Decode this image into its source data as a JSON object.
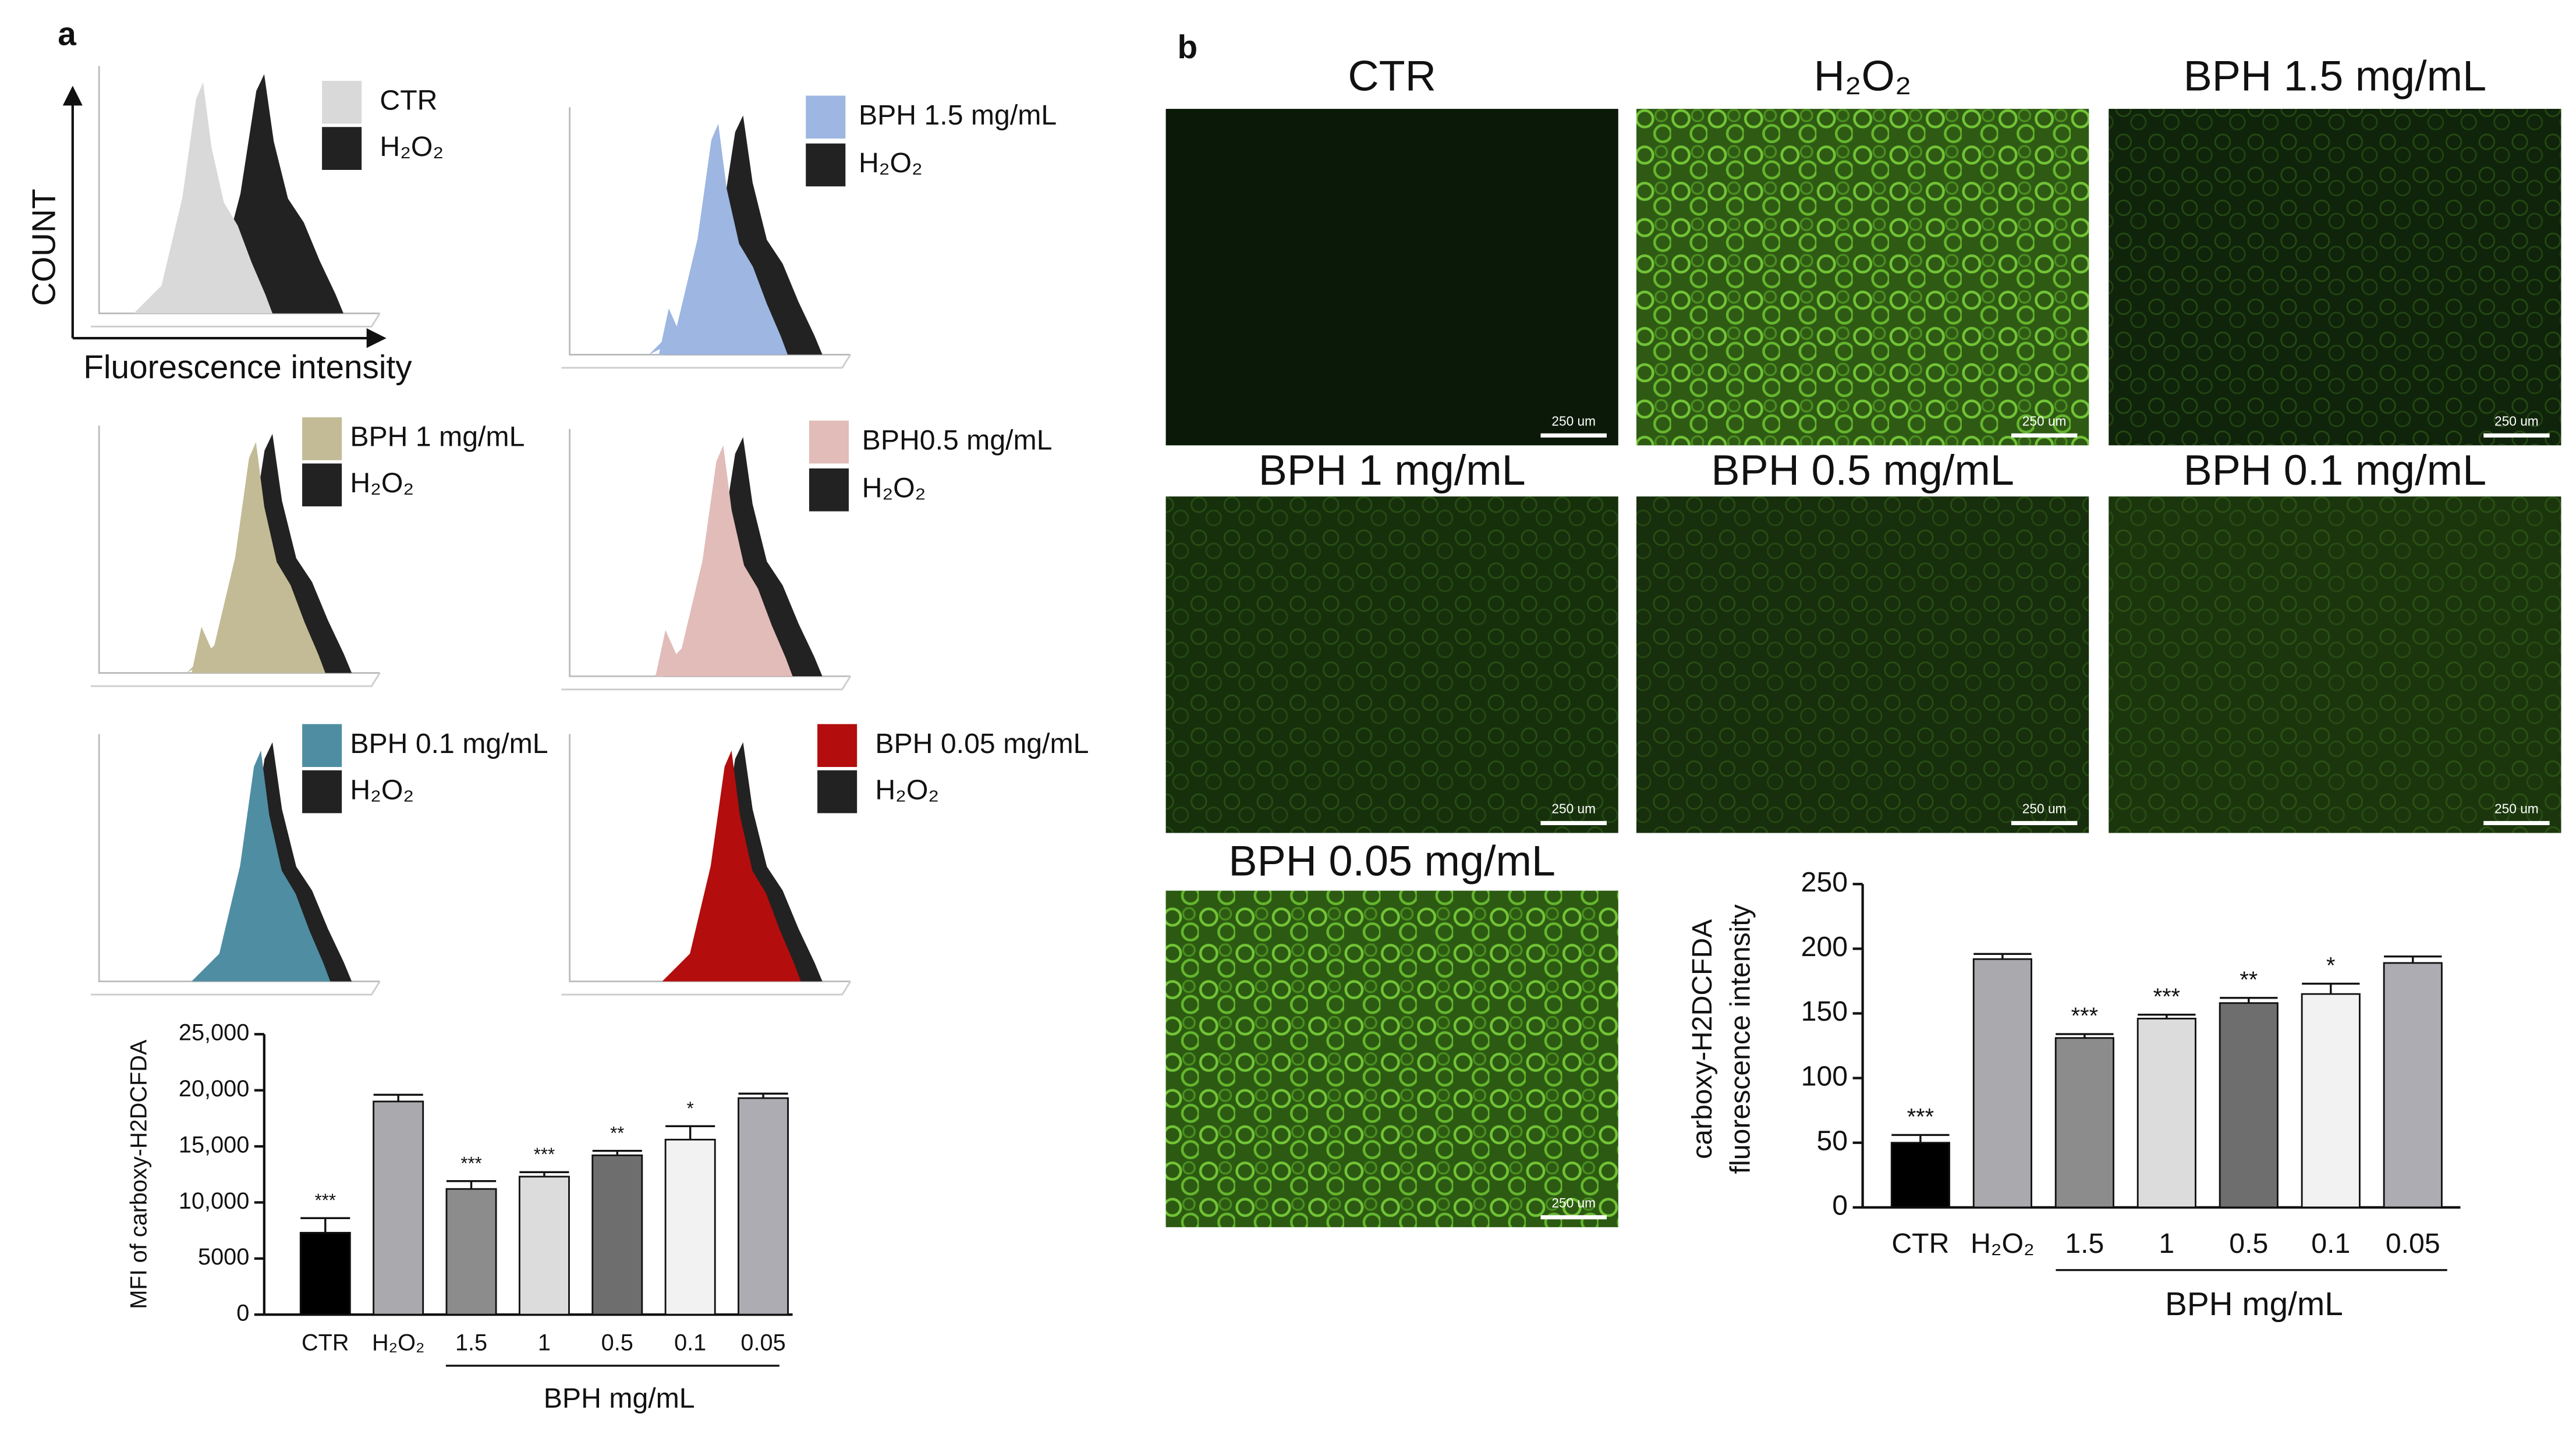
{
  "panel_labels": [
    "a",
    "b"
  ],
  "histograms": {
    "y_label": "COUNT",
    "x_label": "Fluorescence intensity",
    "panels": [
      {
        "series": [
          {
            "name": "CTR",
            "color": "#d9d9d9"
          },
          {
            "name": "H₂O₂",
            "color": "#222222"
          }
        ]
      },
      {
        "series": [
          {
            "name": "BPH 1.5 mg/mL",
            "color": "#9db6e2"
          },
          {
            "name": "H₂O₂",
            "color": "#222222"
          }
        ]
      },
      {
        "series": [
          {
            "name": "BPH 1 mg/mL",
            "color": "#c2bb95"
          },
          {
            "name": "H₂O₂",
            "color": "#222222"
          }
        ]
      },
      {
        "series": [
          {
            "name": "BPH0.5 mg/mL",
            "color": "#e2bcb8"
          },
          {
            "name": "H₂O₂",
            "color": "#222222"
          }
        ]
      },
      {
        "series": [
          {
            "name": "BPH 0.1 mg/mL",
            "color": "#4f8da3"
          },
          {
            "name": "H₂O₂",
            "color": "#222222"
          }
        ]
      },
      {
        "series": [
          {
            "name": "BPH 0.05 mg/mL",
            "color": "#b30d0d"
          },
          {
            "name": "H₂O₂",
            "color": "#222222"
          }
        ]
      }
    ]
  },
  "micrographs": [
    {
      "title": "CTR",
      "scale": "250 um",
      "color": "#0b1a08"
    },
    {
      "title": "H₂O₂",
      "scale": "250 um",
      "color": "#2f5a14"
    },
    {
      "title": "BPH 1.5 mg/mL",
      "scale": "250 um",
      "color": "#0f240a"
    },
    {
      "title": "BPH 1 mg/mL",
      "scale": "250 um",
      "color": "#16300c"
    },
    {
      "title": "BPH 0.5 mg/mL",
      "scale": "250 um",
      "color": "#172f0c"
    },
    {
      "title": "BPH 0.1 mg/mL",
      "scale": "250 um",
      "color": "#1b360d"
    },
    {
      "title": "BPH 0.05 mg/mL",
      "scale": "250 um",
      "color": "#2c5a12"
    }
  ],
  "chart_data": [
    {
      "type": "bar",
      "y_label": [
        "MFI of carboxy-H2DCFDA"
      ],
      "categories": [
        "CTR",
        "H₂O₂",
        "1.5",
        "1",
        "0.5",
        "0.1",
        "0.05"
      ],
      "values": [
        7300,
        19000,
        11200,
        12300,
        14200,
        15600,
        19300
      ],
      "errors": [
        1300,
        600,
        700,
        400,
        400,
        1200,
        400
      ],
      "annotations": [
        "***",
        null,
        "***",
        "***",
        "**",
        "*",
        null
      ],
      "colors": [
        "#000000",
        "#a9a9ae",
        "#8c8c8c",
        "#dcdcdc",
        "#6e6e6e",
        "#f2f2f2",
        "#acacb2"
      ],
      "group_label": "BPH mg/mL",
      "ylim": [
        0,
        25000
      ],
      "yticks": [
        0,
        5000,
        {
          "value": 10000,
          "label": "10,000"
        },
        {
          "value": 15000,
          "label": "15,000"
        },
        {
          "value": 20000,
          "label": "20,000"
        },
        {
          "value": 25000,
          "label": "25,000"
        }
      ]
    },
    {
      "type": "bar",
      "y_label": [
        "carboxy-H2DCFDA",
        "fluorescence intensity"
      ],
      "categories": [
        "CTR",
        "H₂O₂",
        "1.5",
        "1",
        "0.5",
        "0.1",
        "0.05"
      ],
      "values": [
        50,
        192,
        131,
        146,
        158,
        165,
        189
      ],
      "errors": [
        6,
        4,
        3,
        3,
        4,
        8,
        5
      ],
      "annotations": [
        "***",
        null,
        "***",
        "***",
        "**",
        "*",
        null
      ],
      "colors": [
        "#000000",
        "#a9a9ae",
        "#8c8c8c",
        "#dcdcdc",
        "#6e6e6e",
        "#f2f2f2",
        "#acacb2"
      ],
      "group_label": "BPH mg/mL",
      "ylim": [
        0,
        250
      ],
      "yticks": [
        0,
        50,
        100,
        150,
        200,
        250
      ]
    }
  ]
}
